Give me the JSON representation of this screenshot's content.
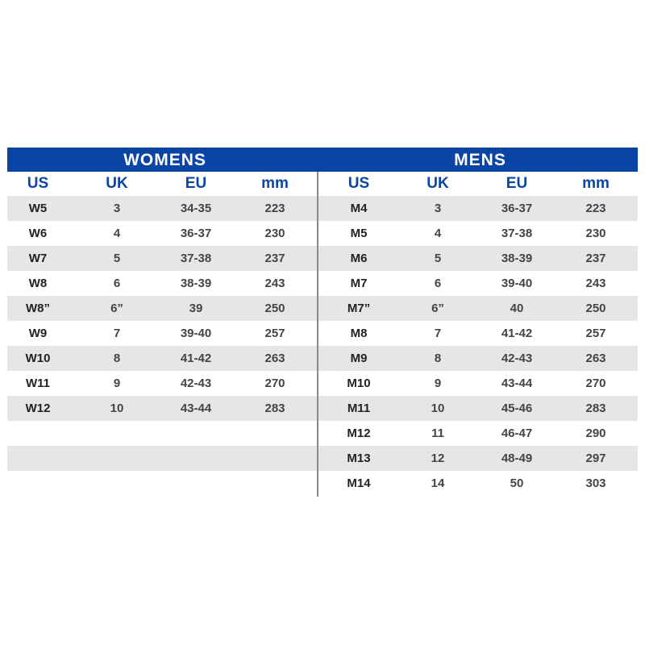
{
  "colors": {
    "header_bar": "#0a45a6",
    "stripe": "#e6e6e6",
    "heading_text": "#0a45a6"
  },
  "womens": {
    "title": "WOMENS",
    "columns": [
      "US",
      "UK",
      "EU",
      "mm"
    ],
    "rows": [
      [
        "W5",
        "3",
        "34-35",
        "223"
      ],
      [
        "W6",
        "4",
        "36-37",
        "230"
      ],
      [
        "W7",
        "5",
        "37-38",
        "237"
      ],
      [
        "W8",
        "6",
        "38-39",
        "243"
      ],
      [
        "W8”",
        "6”",
        "39",
        "250"
      ],
      [
        "W9",
        "7",
        "39-40",
        "257"
      ],
      [
        "W10",
        "8",
        "41-42",
        "263"
      ],
      [
        "W11",
        "9",
        "42-43",
        "270"
      ],
      [
        "W12",
        "10",
        "43-44",
        "283"
      ]
    ]
  },
  "mens": {
    "title": "MENS",
    "columns": [
      "US",
      "UK",
      "EU",
      "mm"
    ],
    "rows": [
      [
        "M4",
        "3",
        "36-37",
        "223"
      ],
      [
        "M5",
        "4",
        "37-38",
        "230"
      ],
      [
        "M6",
        "5",
        "38-39",
        "237"
      ],
      [
        "M7",
        "6",
        "39-40",
        "243"
      ],
      [
        "M7”",
        "6”",
        "40",
        "250"
      ],
      [
        "M8",
        "7",
        "41-42",
        "257"
      ],
      [
        "M9",
        "8",
        "42-43",
        "263"
      ],
      [
        "M10",
        "9",
        "43-44",
        "270"
      ],
      [
        "M11",
        "10",
        "45-46",
        "283"
      ],
      [
        "M12",
        "11",
        "46-47",
        "290"
      ],
      [
        "M13",
        "12",
        "48-49",
        "297"
      ],
      [
        "M14",
        "14",
        "50",
        "303"
      ]
    ]
  }
}
